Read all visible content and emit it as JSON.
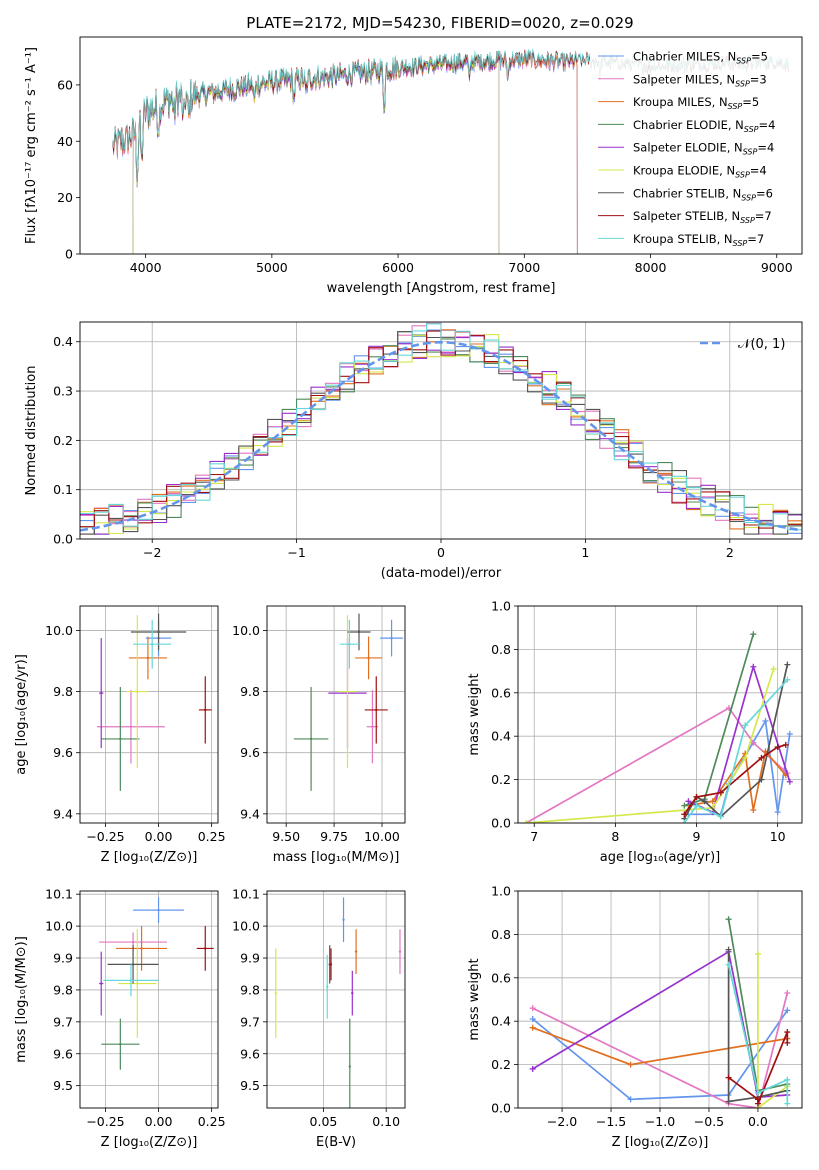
{
  "figure_title": "PLATE=2172, MJD=54230, FIBERID=0020, z=0.029",
  "colors": {
    "Chabrier MILES": "#6495ed",
    "Salpeter MILES": "#e377c2",
    "Kroupa MILES": "#e07020",
    "Chabrier ELODIE": "#4f8a5a",
    "Salpeter ELODIE": "#9932cc",
    "Kroupa ELODIE": "#d4e84c",
    "Chabrier STELIB": "#555555",
    "Salpeter STELIB": "#a01010",
    "Kroupa STELIB": "#66d8d8"
  },
  "chart_data": [
    {
      "id": "spectrum",
      "type": "line",
      "xlabel": "wavelength [Angstrom, rest frame]",
      "ylabel": "Flux [fλ10⁻¹⁷ erg cm⁻² s⁻¹ A⁻¹]",
      "xlim": [
        3480,
        9200
      ],
      "ylim": [
        0,
        77
      ],
      "xticks": [
        4000,
        5000,
        6000,
        7000,
        8000,
        9000
      ],
      "yticks": [
        0,
        20,
        40,
        60
      ],
      "legend_position": "upper-right",
      "legend": [
        {
          "model": "Chabrier MILES",
          "label": "Chabrier MILES, N",
          "nssp": "=5"
        },
        {
          "model": "Salpeter MILES",
          "label": "Salpeter MILES, N",
          "nssp": "=3"
        },
        {
          "model": "Kroupa MILES",
          "label": "Kroupa MILES, N",
          "nssp": "=5"
        },
        {
          "model": "Chabrier ELODIE",
          "label": "Chabrier ELODIE, N",
          "nssp": "=4"
        },
        {
          "model": "Salpeter ELODIE",
          "label": "Salpeter ELODIE, N",
          "nssp": "=4"
        },
        {
          "model": "Kroupa ELODIE",
          "label": "Kroupa ELODIE, N",
          "nssp": "=4"
        },
        {
          "model": "Chabrier STELIB",
          "label": "Chabrier STELIB, N",
          "nssp": "=6"
        },
        {
          "model": "Salpeter STELIB",
          "label": "Salpeter STELIB, N",
          "nssp": "=7"
        },
        {
          "model": "Kroupa STELIB",
          "label": "Kroupa STELIB, N",
          "nssp": "=7"
        }
      ],
      "continuum": [
        [
          3740,
          38
        ],
        [
          3900,
          42
        ],
        [
          4000,
          50
        ],
        [
          4200,
          55
        ],
        [
          4500,
          57
        ],
        [
          5000,
          61
        ],
        [
          5500,
          63
        ],
        [
          6000,
          66
        ],
        [
          6500,
          68
        ],
        [
          7000,
          69
        ],
        [
          7500,
          68
        ],
        [
          8000,
          66
        ],
        [
          8500,
          67
        ],
        [
          9000,
          67.5
        ],
        [
          9100,
          67
        ]
      ],
      "model_ranges": {
        "Chabrier MILES": [
          3740,
          7420
        ],
        "Salpeter MILES": [
          3740,
          7420
        ],
        "Kroupa MILES": [
          3740,
          7420
        ],
        "Chabrier ELODIE": [
          3900,
          6800
        ],
        "Salpeter ELODIE": [
          3900,
          6800
        ],
        "Kroupa ELODIE": [
          3900,
          6800
        ],
        "Chabrier STELIB": [
          3740,
          9100
        ],
        "Salpeter STELIB": [
          3740,
          9100
        ],
        "Kroupa STELIB": [
          3740,
          9100
        ]
      }
    },
    {
      "id": "residuals",
      "type": "area",
      "xlabel": "(data-model)/error",
      "ylabel": "Normed distribution",
      "xlim": [
        -2.5,
        2.5
      ],
      "ylim": [
        0,
        0.44
      ],
      "xticks": [
        -2,
        -1,
        0,
        1,
        2
      ],
      "xticklabels": [
        "−2",
        "−1",
        "0",
        "1",
        "2"
      ],
      "yticks": [
        0.0,
        0.1,
        0.2,
        0.3,
        0.4
      ],
      "bin_width": 0.1,
      "series_name": "𝒩(0, 1)",
      "grid": true
    },
    {
      "id": "age_vs_Z",
      "type": "scatter",
      "xlabel": "Z [log₁₀(Z/Z⊙)]",
      "ylabel": "age  [log₁₀(age/yr)]",
      "xlim": [
        -0.37,
        0.28
      ],
      "ylim": [
        9.37,
        10.08
      ],
      "xticks": [
        -0.25,
        0.0,
        0.25
      ],
      "xticklabels": [
        "−0.25",
        "0.00",
        "0.25"
      ],
      "yticks": [
        9.4,
        9.6,
        9.8,
        10.0
      ],
      "points": [
        {
          "model": "Chabrier MILES",
          "x": 0.0,
          "y": 9.975,
          "xerr": 0.06,
          "yerr": 0.06
        },
        {
          "model": "Salpeter MILES",
          "x": -0.13,
          "y": 9.685,
          "xerr": 0.16,
          "yerr": 0.12
        },
        {
          "model": "Kroupa MILES",
          "x": -0.05,
          "y": 9.91,
          "xerr": 0.09,
          "yerr": 0.07
        },
        {
          "model": "Chabrier ELODIE",
          "x": -0.18,
          "y": 9.645,
          "xerr": 0.09,
          "yerr": 0.17
        },
        {
          "model": "Salpeter ELODIE",
          "x": -0.27,
          "y": 9.795,
          "xerr": 0.01,
          "yerr": 0.18
        },
        {
          "model": "Kroupa ELODIE",
          "x": -0.1,
          "y": 9.8,
          "xerr": 0.05,
          "yerr": 0.25
        },
        {
          "model": "Chabrier STELIB",
          "x": 0.0,
          "y": 9.995,
          "xerr": 0.13,
          "yerr": 0.06
        },
        {
          "model": "Salpeter STELIB",
          "x": 0.22,
          "y": 9.74,
          "xerr": 0.03,
          "yerr": 0.11
        },
        {
          "model": "Kroupa STELIB",
          "x": -0.03,
          "y": 9.955,
          "xerr": 0.09,
          "yerr": 0.08
        }
      ]
    },
    {
      "id": "age_vs_mass",
      "type": "scatter",
      "xlabel": "mass [log₁₀(M/M⊙)]",
      "ylabel": "",
      "xlim": [
        9.4,
        10.12
      ],
      "ylim": [
        9.37,
        10.08
      ],
      "xticks": [
        9.5,
        9.75,
        10.0
      ],
      "xticklabels": [
        "9.50",
        "9.75",
        "10.00"
      ],
      "yticks": [
        9.4,
        9.6,
        9.8,
        10.0
      ],
      "points": [
        {
          "model": "Chabrier MILES",
          "x": 10.05,
          "y": 9.975,
          "xerr": 0.06,
          "yerr": 0.06
        },
        {
          "model": "Salpeter MILES",
          "x": 9.95,
          "y": 9.685,
          "xerr": 0.03,
          "yerr": 0.12
        },
        {
          "model": "Kroupa MILES",
          "x": 9.93,
          "y": 9.91,
          "xerr": 0.07,
          "yerr": 0.07
        },
        {
          "model": "Chabrier ELODIE",
          "x": 9.63,
          "y": 9.645,
          "xerr": 0.09,
          "yerr": 0.17
        },
        {
          "model": "Salpeter ELODIE",
          "x": 9.82,
          "y": 9.795,
          "xerr": 0.1,
          "yerr": 0.18
        },
        {
          "model": "Kroupa ELODIE",
          "x": 9.82,
          "y": 9.8,
          "xerr": 0.05,
          "yerr": 0.25
        },
        {
          "model": "Chabrier STELIB",
          "x": 9.88,
          "y": 9.995,
          "xerr": 0.06,
          "yerr": 0.06
        },
        {
          "model": "Salpeter STELIB",
          "x": 9.97,
          "y": 9.74,
          "xerr": 0.06,
          "yerr": 0.11
        },
        {
          "model": "Kroupa STELIB",
          "x": 9.83,
          "y": 9.955,
          "xerr": 0.05,
          "yerr": 0.08
        }
      ]
    },
    {
      "id": "weight_vs_age",
      "type": "line",
      "xlabel": "age  [log₁₀(age/yr)]",
      "ylabel": "mass weight",
      "xlim": [
        6.8,
        10.3
      ],
      "ylim": [
        0,
        1
      ],
      "xticks": [
        7,
        8,
        9,
        10
      ],
      "yticks": [
        0.0,
        0.2,
        0.4,
        0.6,
        0.8,
        1.0
      ],
      "series": [
        {
          "name": "Chabrier MILES",
          "x": [
            8.9,
            9.3,
            9.4,
            9.85,
            10.0,
            10.15
          ],
          "y": [
            0.04,
            0.04,
            0.18,
            0.47,
            0.05,
            0.41
          ]
        },
        {
          "name": "Salpeter MILES",
          "x": [
            6.9,
            9.4,
            9.7,
            10.12
          ],
          "y": [
            0.0,
            0.53,
            0.37,
            0.23
          ]
        },
        {
          "name": "Kroupa MILES",
          "x": [
            8.9,
            9.2,
            9.6,
            9.7,
            9.85,
            10.1
          ],
          "y": [
            0.08,
            0.1,
            0.32,
            0.06,
            0.33,
            0.22
          ]
        },
        {
          "name": "Chabrier ELODIE",
          "x": [
            8.85,
            9.1,
            9.7
          ],
          "y": [
            0.08,
            0.11,
            0.87
          ]
        },
        {
          "name": "Salpeter ELODIE",
          "x": [
            8.9,
            9.2,
            9.7,
            10.15
          ],
          "y": [
            0.1,
            0.05,
            0.72,
            0.19
          ]
        },
        {
          "name": "Kroupa ELODIE",
          "x": [
            6.9,
            9.2,
            9.6,
            9.95
          ],
          "y": [
            0.0,
            0.07,
            0.3,
            0.71
          ]
        },
        {
          "name": "Chabrier STELIB",
          "x": [
            8.85,
            9.0,
            9.1,
            9.3,
            9.8,
            10.12
          ],
          "y": [
            0.02,
            0.12,
            0.1,
            0.03,
            0.2,
            0.73
          ]
        },
        {
          "name": "Salpeter STELIB",
          "x": [
            8.85,
            9.0,
            9.3,
            9.8,
            10.0,
            10.1
          ],
          "y": [
            0.04,
            0.12,
            0.14,
            0.3,
            0.35,
            0.36
          ]
        },
        {
          "name": "Kroupa STELIB",
          "x": [
            8.85,
            9.0,
            9.3,
            9.6,
            10.12
          ],
          "y": [
            0.0,
            0.08,
            0.03,
            0.45,
            0.66
          ]
        }
      ]
    },
    {
      "id": "mass_vs_Z",
      "type": "scatter",
      "xlabel": "Z [log₁₀(Z/Z⊙)]",
      "ylabel": "mass [log₁₀(M/M⊙)]",
      "xlim": [
        -0.37,
        0.28
      ],
      "ylim": [
        9.43,
        10.11
      ],
      "xticks": [
        -0.25,
        0.0,
        0.25
      ],
      "xticklabels": [
        "−0.25",
        "0.00",
        "0.25"
      ],
      "yticks": [
        9.5,
        9.6,
        9.7,
        9.8,
        9.9,
        10.0,
        10.1
      ],
      "points": [
        {
          "model": "Chabrier MILES",
          "x": 0.0,
          "y": 10.05,
          "xerr": 0.12,
          "yerr": 0.04
        },
        {
          "model": "Salpeter MILES",
          "x": -0.12,
          "y": 9.95,
          "xerr": 0.16,
          "yerr": 0.03
        },
        {
          "model": "Kroupa MILES",
          "x": -0.08,
          "y": 9.93,
          "xerr": 0.12,
          "yerr": 0.07
        },
        {
          "model": "Chabrier ELODIE",
          "x": -0.18,
          "y": 9.63,
          "xerr": 0.09,
          "yerr": 0.08
        },
        {
          "model": "Salpeter ELODIE",
          "x": -0.27,
          "y": 9.82,
          "xerr": 0.01,
          "yerr": 0.1
        },
        {
          "model": "Kroupa ELODIE",
          "x": -0.1,
          "y": 9.82,
          "xerr": 0.09,
          "yerr": 0.17
        },
        {
          "model": "Chabrier STELIB",
          "x": -0.12,
          "y": 9.88,
          "xerr": 0.12,
          "yerr": 0.06
        },
        {
          "model": "Salpeter STELIB",
          "x": 0.22,
          "y": 9.93,
          "xerr": 0.04,
          "yerr": 0.07
        },
        {
          "model": "Kroupa STELIB",
          "x": -0.13,
          "y": 9.83,
          "xerr": 0.13,
          "yerr": 0.05
        }
      ]
    },
    {
      "id": "mass_vs_ebv",
      "type": "scatter",
      "xlabel": "E(B-V)",
      "ylabel": "",
      "xlim": [
        0.005,
        0.115
      ],
      "ylim": [
        9.43,
        10.11
      ],
      "xticks": [
        0.05,
        0.1
      ],
      "xticklabels": [
        "0.05",
        "0.10"
      ],
      "yticks": [
        9.5,
        9.6,
        9.7,
        9.8,
        9.9,
        10.0,
        10.1
      ],
      "points": [
        {
          "model": "Chabrier MILES",
          "x": 0.066,
          "y": 10.02,
          "yerr": 0.07
        },
        {
          "model": "Salpeter MILES",
          "x": 0.111,
          "y": 9.92,
          "yerr": 0.07
        },
        {
          "model": "Kroupa MILES",
          "x": 0.076,
          "y": 9.92,
          "yerr": 0.07
        },
        {
          "model": "Chabrier ELODIE",
          "x": 0.071,
          "y": 9.56,
          "yerr": 0.15
        },
        {
          "model": "Salpeter ELODIE",
          "x": 0.073,
          "y": 9.79,
          "yerr": 0.07
        },
        {
          "model": "Kroupa ELODIE",
          "x": 0.012,
          "y": 9.79,
          "yerr": 0.14
        },
        {
          "model": "Chabrier STELIB",
          "x": 0.055,
          "y": 9.88,
          "yerr": 0.06
        },
        {
          "model": "Salpeter STELIB",
          "x": 0.056,
          "y": 9.88,
          "yerr": 0.05
        },
        {
          "model": "Kroupa STELIB",
          "x": 0.053,
          "y": 9.81,
          "yerr": 0.1
        }
      ]
    },
    {
      "id": "weight_vs_Z",
      "type": "line",
      "xlabel": "Z [log₁₀(Z/Z⊙)]",
      "ylabel": "mass weight",
      "xlim": [
        -2.45,
        0.45
      ],
      "ylim": [
        0,
        1
      ],
      "xticks": [
        -2.0,
        -1.5,
        -1.0,
        -0.5,
        0.0
      ],
      "xticklabels": [
        "−2.0",
        "−1.5",
        "−1.0",
        "−0.5",
        "0.0"
      ],
      "yticks": [
        0.0,
        0.2,
        0.4,
        0.6,
        0.8,
        1.0
      ],
      "series": [
        {
          "name": "Chabrier MILES",
          "x": [
            -2.3,
            -1.3,
            -0.3,
            0.3
          ],
          "y": [
            0.41,
            0.04,
            0.06,
            0.45
          ]
        },
        {
          "name": "Salpeter MILES",
          "x": [
            -2.3,
            -0.3,
            0.0,
            0.3
          ],
          "y": [
            0.46,
            0.02,
            0.0,
            0.53
          ]
        },
        {
          "name": "Kroupa MILES",
          "x": [
            -2.3,
            -1.3,
            0.3
          ],
          "y": [
            0.37,
            0.2,
            0.32
          ]
        },
        {
          "name": "Chabrier ELODIE",
          "x": [
            -0.3,
            0.0,
            0.3
          ],
          "y": [
            0.87,
            0.08,
            0.11
          ]
        },
        {
          "name": "Salpeter ELODIE",
          "x": [
            -2.3,
            -0.3,
            0.0,
            0.3
          ],
          "y": [
            0.18,
            0.72,
            0.05,
            0.06
          ]
        },
        {
          "name": "Kroupa ELODIE",
          "x": [
            0.0,
            0.0,
            0.3
          ],
          "y": [
            0.71,
            0.0,
            0.1
          ]
        },
        {
          "name": "Chabrier STELIB",
          "x": [
            -0.3,
            -0.3,
            0.0,
            0.3
          ],
          "y": [
            0.73,
            0.03,
            0.05,
            0.08
          ]
        },
        {
          "name": "Salpeter STELIB",
          "x": [
            -0.3,
            0.0,
            0.0,
            0.3,
            0.3
          ],
          "y": [
            0.14,
            0.04,
            0.02,
            0.35,
            0.3
          ]
        },
        {
          "name": "Kroupa STELIB",
          "x": [
            -0.3,
            0.0,
            0.3,
            0.3
          ],
          "y": [
            0.66,
            0.07,
            0.13,
            0.02
          ]
        }
      ]
    }
  ]
}
